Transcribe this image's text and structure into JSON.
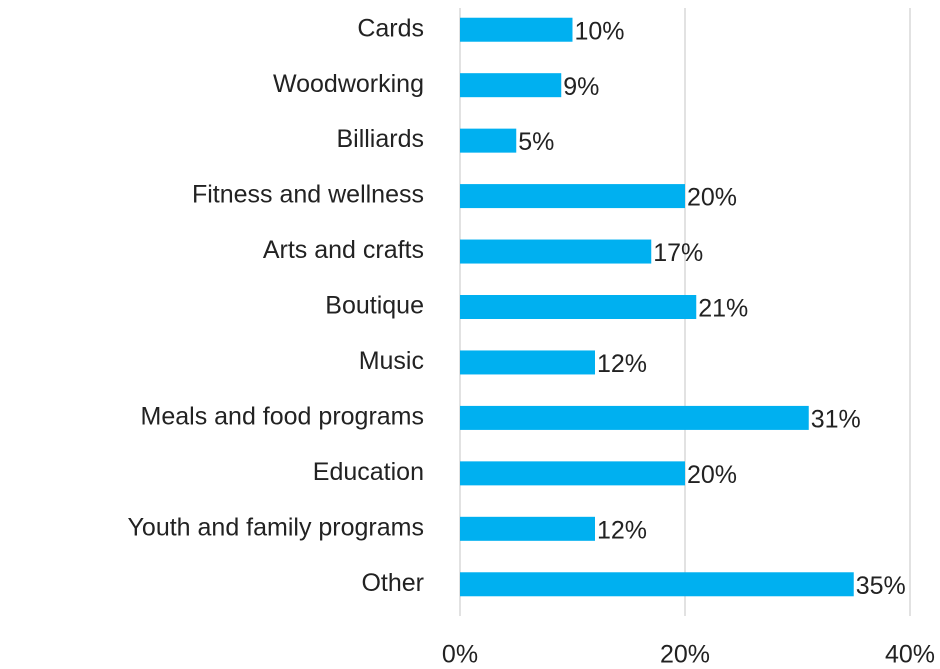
{
  "chart_data": {
    "type": "barh",
    "categories": [
      "Cards",
      "Woodworking",
      "Billiards",
      "Fitness and wellness",
      "Arts and crafts",
      "Boutique",
      "Music",
      "Meals and food programs",
      "Education",
      "Youth and family programs",
      "Other"
    ],
    "values": [
      10,
      9,
      5,
      20,
      17,
      21,
      12,
      31,
      20,
      12,
      35
    ],
    "value_labels": [
      "10%",
      "9%",
      "5%",
      "20%",
      "17%",
      "21%",
      "12%",
      "31%",
      "20%",
      "12%",
      "35%"
    ],
    "color": "#00b0f0",
    "xlim": [
      0,
      40
    ],
    "xticks": [
      {
        "value": 0,
        "label": "0%"
      },
      {
        "value": 20,
        "label": "20%"
      },
      {
        "value": 40,
        "label": "40%"
      }
    ],
    "grid": true
  }
}
